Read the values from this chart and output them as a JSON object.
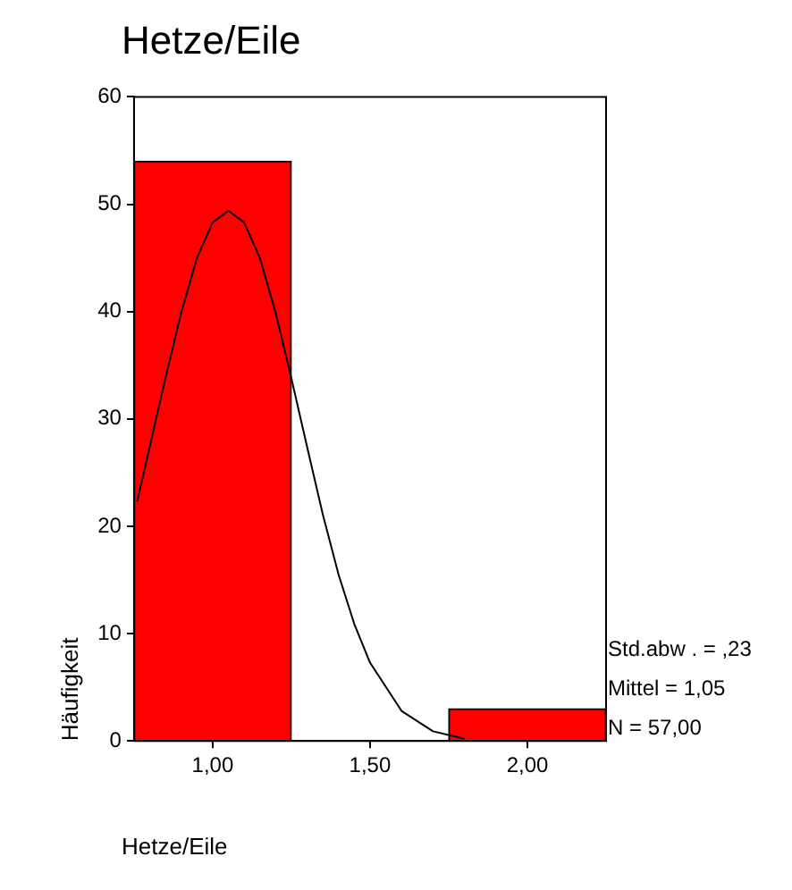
{
  "chart_data": {
    "type": "histogram",
    "title": "Hetze/Eile",
    "xlabel": "Hetze/Eile",
    "ylabel": "Häufigkeit",
    "bins": [
      0.75,
      1.25,
      1.75,
      2.25
    ],
    "series": [
      {
        "color": "#ff0000",
        "values": [
          54,
          0,
          3
        ]
      },
      {
        "type": "line",
        "color": "#000000",
        "x": [
          0.76,
          0.8,
          0.85,
          0.9,
          0.95,
          1.0,
          1.05,
          1.1,
          1.15,
          1.2,
          1.25,
          1.3,
          1.35,
          1.4,
          1.45,
          1.5,
          1.6,
          1.7,
          1.8
        ],
        "values": [
          22.3,
          27.4,
          33.8,
          39.9,
          45.0,
          48.3,
          49.4,
          48.3,
          45.0,
          39.9,
          33.8,
          27.4,
          21.1,
          15.5,
          10.9,
          7.3,
          2.8,
          0.9,
          0.2
        ]
      }
    ],
    "xlim": [
      0.75,
      2.25
    ],
    "xticks": [
      {
        "value": 1,
        "label": "1,00"
      },
      {
        "value": 1.5,
        "label": "1,50"
      },
      {
        "value": 2,
        "label": "2,00"
      }
    ],
    "ylim": [
      0,
      60
    ],
    "yticks": [
      0,
      10,
      20,
      30,
      40,
      50,
      60
    ],
    "grid": false,
    "legend": false,
    "marker": "none",
    "line_style": "solid",
    "annotations": [
      "Std.abw . = ,23",
      "Mittel = 1,05",
      "N = 57,00"
    ]
  }
}
